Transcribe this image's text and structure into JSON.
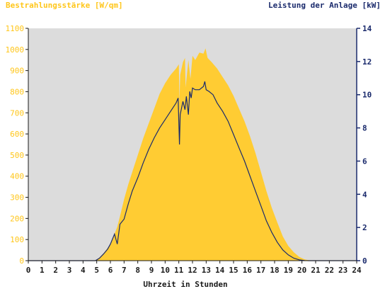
{
  "chart_data": {
    "type": "area",
    "left_axis_title": "Bestrahlungsstärke [W/qm]",
    "right_axis_title": "Leistung der Anlage [kW]",
    "xlabel": "Uhrzeit in Stunden",
    "xlim": [
      0,
      24
    ],
    "x_ticks": [
      "0",
      "1",
      "2",
      "3",
      "4",
      "5",
      "6",
      "7",
      "8",
      "9",
      "10",
      "11",
      "12",
      "13",
      "14",
      "15",
      "16",
      "17",
      "18",
      "19",
      "20",
      "21",
      "22",
      "23",
      "24"
    ],
    "y_left_lim": [
      0,
      1100
    ],
    "y_left_ticks": [
      "0",
      "100",
      "200",
      "300",
      "400",
      "500",
      "600",
      "700",
      "800",
      "900",
      "1000",
      "1100"
    ],
    "y_right_lim": [
      0,
      14
    ],
    "y_right_ticks": [
      "0",
      "2",
      "4",
      "6",
      "8",
      "10",
      "12",
      "14"
    ],
    "colors": {
      "irradiance_fill": "#ffcc33",
      "power_line": "#1a2a6c",
      "plot_background": "#dcdcdc",
      "left_axis_text": "#ffc61a",
      "right_axis_text": "#1a2a6c"
    },
    "series": [
      {
        "axis": "left",
        "kind": "area",
        "x": [
          0,
          4.8,
          5.0,
          5.2,
          5.5,
          5.8,
          6.0,
          6.2,
          6.5,
          6.7,
          7.0,
          7.3,
          7.6,
          8.0,
          8.4,
          8.8,
          9.2,
          9.6,
          10.0,
          10.4,
          10.8,
          11.0,
          11.05,
          11.1,
          11.3,
          11.45,
          11.5,
          11.7,
          11.85,
          12.0,
          12.2,
          12.5,
          12.8,
          12.95,
          13.1,
          13.4,
          13.8,
          14.2,
          14.6,
          15.0,
          15.4,
          15.8,
          16.2,
          16.6,
          17.0,
          17.4,
          17.8,
          18.2,
          18.6,
          19.0,
          19.4,
          19.8,
          20.2,
          20.5,
          20.8,
          24
        ],
        "y": [
          0,
          0,
          5,
          15,
          35,
          60,
          80,
          110,
          160,
          210,
          290,
          360,
          420,
          500,
          580,
          650,
          720,
          790,
          840,
          880,
          910,
          930,
          750,
          880,
          940,
          960,
          820,
          950,
          860,
          970,
          950,
          985,
          980,
          1005,
          960,
          940,
          910,
          870,
          830,
          780,
          720,
          660,
          590,
          510,
          420,
          330,
          250,
          180,
          115,
          70,
          40,
          18,
          6,
          2,
          0,
          0
        ]
      },
      {
        "axis": "right",
        "kind": "line",
        "x": [
          0,
          4.9,
          5.2,
          5.5,
          5.8,
          6.0,
          6.3,
          6.5,
          6.7,
          7.0,
          7.3,
          7.6,
          8.0,
          8.4,
          8.8,
          9.2,
          9.6,
          10.0,
          10.4,
          10.8,
          10.95,
          11.05,
          11.1,
          11.3,
          11.45,
          11.55,
          11.7,
          11.8,
          11.9,
          12.0,
          12.2,
          12.5,
          12.8,
          12.9,
          13.0,
          13.2,
          13.5,
          13.8,
          14.2,
          14.6,
          15.0,
          15.4,
          15.8,
          16.2,
          16.6,
          17.0,
          17.4,
          17.8,
          18.2,
          18.6,
          19.0,
          19.4,
          19.8,
          20.2,
          20.5,
          24
        ],
        "y": [
          0,
          0,
          0.15,
          0.4,
          0.7,
          1.0,
          1.6,
          1.0,
          2.2,
          2.5,
          3.4,
          4.2,
          5.0,
          5.9,
          6.7,
          7.4,
          8.0,
          8.5,
          9.0,
          9.5,
          9.8,
          7.0,
          8.8,
          9.6,
          9.1,
          9.9,
          8.8,
          10.2,
          9.8,
          10.4,
          10.3,
          10.3,
          10.5,
          10.8,
          10.3,
          10.2,
          10.0,
          9.5,
          9.0,
          8.4,
          7.6,
          6.8,
          6.0,
          5.1,
          4.2,
          3.3,
          2.4,
          1.7,
          1.1,
          0.65,
          0.35,
          0.15,
          0.05,
          0.01,
          0,
          0
        ]
      }
    ]
  }
}
